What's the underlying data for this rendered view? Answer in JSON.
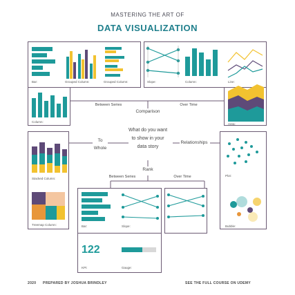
{
  "header": {
    "title_line1": "MASTERING THE ART OF",
    "title_line2": "DATA VISUALIZATION"
  },
  "center_question": [
    "What do you want",
    "to show in your",
    "data story"
  ],
  "branches": {
    "comparison": "Comparison",
    "between_series_top": "Between Series",
    "over_time_top": "Over Time",
    "to_whole": [
      "To",
      "Whole"
    ],
    "relationships": "Relationships",
    "rank": "Rank",
    "between_series_bottom": "Between Series",
    "over_time_bottom": "Over Time"
  },
  "chart_labels": {
    "bar": "Bar:",
    "grouped_column_1": "Grouped Column:",
    "grouped_column_2": "Grouped Column:",
    "column_left": "Column:",
    "slope": "Slope:",
    "column_mid": "Column:",
    "line": "Line:",
    "area": "Area:",
    "stacked_column": "Stacked Column:",
    "treemap_column": "Treemap Column:",
    "plot": "Plot:",
    "bubble": "Bubble:",
    "bar_bottom": "Bar:",
    "slope_bottom": "Slope:",
    "kpi": "KPI:",
    "gauge": "Gauge:"
  },
  "kpi_value": "122",
  "gauge_fill": 0.6,
  "footer": {
    "year": "2020",
    "prepared_by": "PREPARED BY JOSHUA BRINDLEY",
    "course": "SEE THE FULL COURSE ON UDEMY"
  },
  "colors": {
    "teal": "#1e9a9a",
    "gold": "#f2c230",
    "orange": "#e8963a",
    "purple": "#5e4a78",
    "frame": "#6b5a73"
  }
}
